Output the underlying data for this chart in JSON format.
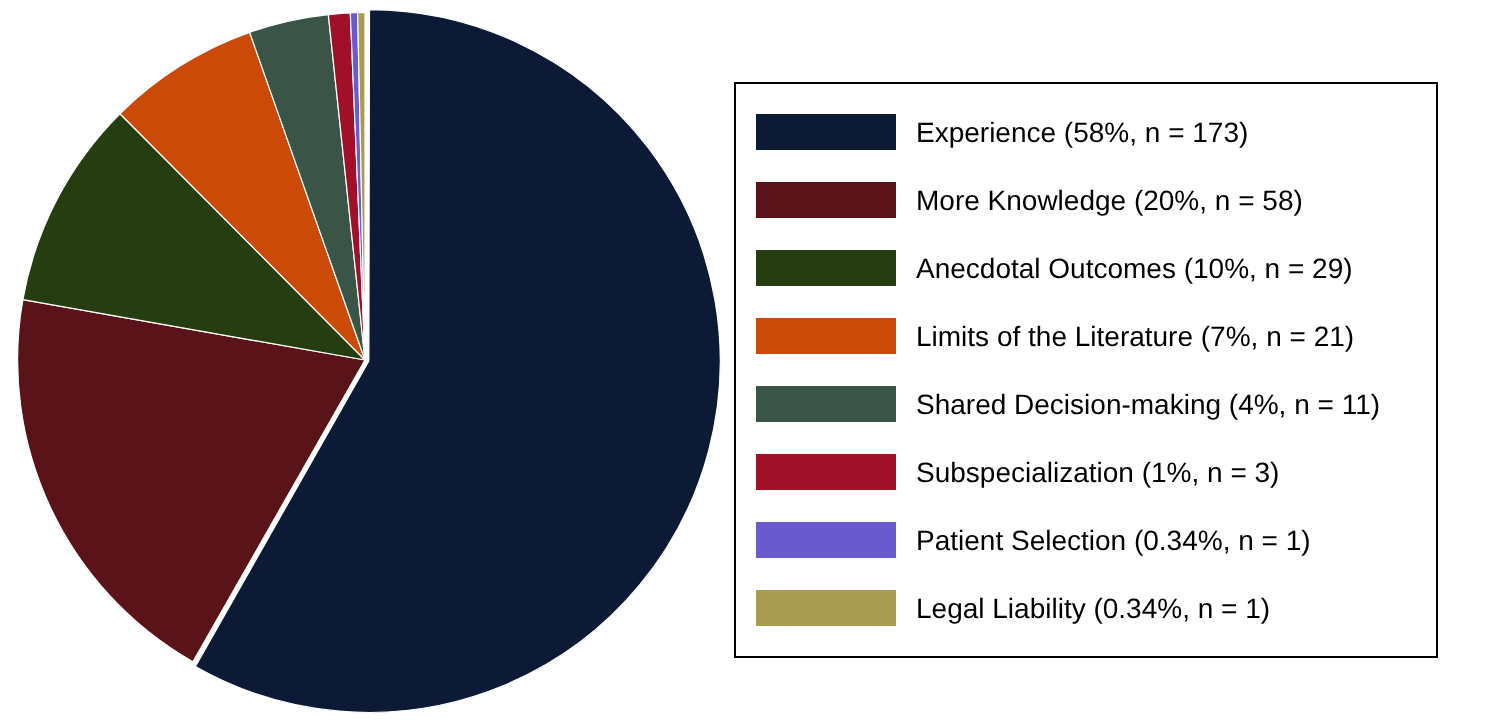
{
  "chart_data": {
    "type": "pie",
    "categories": [
      "Experience (58%, n = 173)",
      "More Knowledge (20%, n = 58)",
      "Anecdotal Outcomes (10%, n = 29)",
      "Limits of the Literature (7%, n = 21)",
      "Shared Decision-making (4%, n = 11)",
      "Subspecialization (1%, n = 3)",
      "Patient Selection (0.34%, n = 1)",
      "Legal Liability (0.34%, n = 1)"
    ],
    "values": [
      173,
      58,
      29,
      21,
      11,
      3,
      1,
      1
    ],
    "colors": [
      "#0c1a36",
      "#5a1419",
      "#263d12",
      "#cc4a08",
      "#3b5448",
      "#a01028",
      "#6a5ad0",
      "#a89c50"
    ],
    "legend": "right"
  }
}
